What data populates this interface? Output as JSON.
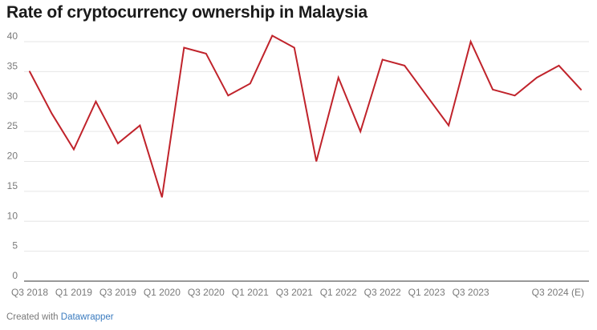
{
  "title": "Rate of cryptocurrency ownership in Malaysia",
  "footer": {
    "prefix": "Created with ",
    "link": "Datawrapper"
  },
  "colors": {
    "line": "#c0232b",
    "grid": "#e6e6e6",
    "baseline": "#333333"
  },
  "chart_data": {
    "type": "line",
    "title": "Rate of cryptocurrency ownership in Malaysia",
    "xlabel": "",
    "ylabel": "",
    "ylim": [
      0,
      40
    ],
    "yticks": [
      0,
      5,
      10,
      15,
      20,
      25,
      30,
      35,
      40
    ],
    "grid": true,
    "categories": [
      "Q3 2018",
      "Q4 2018",
      "Q1 2019",
      "Q2 2019",
      "Q3 2019",
      "Q4 2019",
      "Q1 2020",
      "Q2 2020",
      "Q3 2020",
      "Q4 2020",
      "Q1 2021",
      "Q2 2021",
      "Q3 2021",
      "Q4 2021",
      "Q1 2022",
      "Q2 2022",
      "Q3 2022",
      "Q4 2022",
      "Q1 2023",
      "Q2 2023",
      "Q3 2023",
      "Q4 2023",
      "Q1 2024",
      "Q2 2024",
      "Q3 2024 (E)",
      "Q4 2024 (E)"
    ],
    "xtick_labels": [
      "Q3 2018",
      "Q1 2019",
      "Q3 2019",
      "Q1 2020",
      "Q3 2020",
      "Q1 2021",
      "Q3 2021",
      "Q1 2022",
      "Q3 2022",
      "Q1 2023",
      "Q3 2023",
      "Q3 2024 (E)"
    ],
    "series": [
      {
        "values": [
          35,
          28,
          22,
          30,
          23,
          26,
          14,
          39,
          38,
          31,
          33,
          41,
          39,
          20,
          34,
          25,
          37,
          36,
          31,
          26,
          40,
          32,
          31,
          34,
          36,
          32
        ]
      }
    ]
  }
}
